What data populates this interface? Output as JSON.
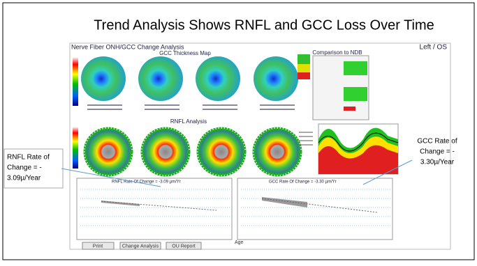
{
  "slide_title": "Trend Analysis Shows RNFL and GCC Loss Over Time",
  "screen": {
    "title": "Nerve Fiber ONH/GCC Change Analysis",
    "eye": "Left / OS",
    "gcc_map_title": "GCC Thickness Map",
    "rnfl_title": "RNFL Analysis",
    "ndb_title": "Comparison to NDB",
    "rnfl_rate_header": "RNFL Rate Of Change = -3.09 µm/Yr",
    "gcc_rate_header": "GCC Rate Of Change = -3.30 µm/Yr",
    "x_axis_label": "Age",
    "buttons": [
      "Print",
      "Change Analysis",
      "OU Report"
    ]
  },
  "annotations": {
    "rnfl": [
      "RNFL Rate of",
      "Change = -",
      "3.09µ/Year"
    ],
    "gcc": [
      "GCC Rate of",
      "Change = -",
      "3.30µ/Year"
    ]
  }
}
